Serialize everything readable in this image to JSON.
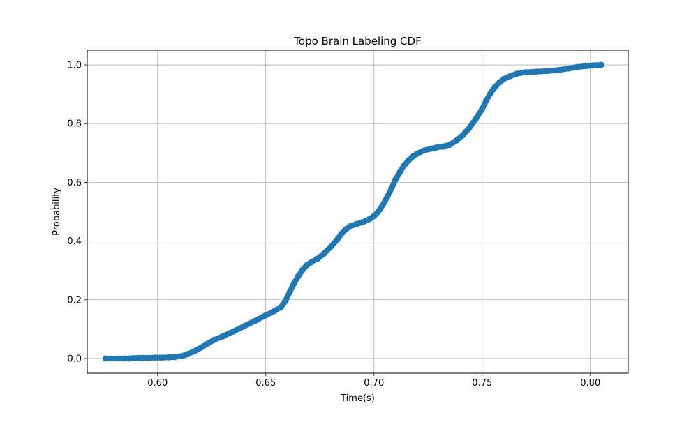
{
  "chart_data": {
    "type": "scatter",
    "title": "Topo Brain Labeling CDF",
    "xlabel": "Time(s)",
    "ylabel": "Probability",
    "xlim": [
      0.5675,
      0.8175
    ],
    "ylim": [
      -0.05,
      1.05
    ],
    "xticks": [
      "0.60",
      "0.65",
      "0.70",
      "0.75",
      "0.80"
    ],
    "yticks": [
      "0.0",
      "0.2",
      "0.4",
      "0.6",
      "0.8",
      "1.0"
    ],
    "grid": true,
    "marker_color": "#1f77b4",
    "series": [
      {
        "x": [
          0.576,
          0.582,
          0.585,
          0.587,
          0.589,
          0.591,
          0.593,
          0.596,
          0.599,
          0.602,
          0.605,
          0.608,
          0.611,
          0.614,
          0.617,
          0.62,
          0.623,
          0.626,
          0.63,
          0.635,
          0.64,
          0.645,
          0.65,
          0.654,
          0.657,
          0.659,
          0.661,
          0.663,
          0.665,
          0.667,
          0.669,
          0.671,
          0.674,
          0.677,
          0.68,
          0.683,
          0.685,
          0.687,
          0.689,
          0.692,
          0.695,
          0.698,
          0.7,
          0.702,
          0.704,
          0.706,
          0.708,
          0.71,
          0.712,
          0.714,
          0.716,
          0.718,
          0.72,
          0.723,
          0.726,
          0.729,
          0.732,
          0.735,
          0.738,
          0.741,
          0.744,
          0.747,
          0.75,
          0.752,
          0.754,
          0.756,
          0.758,
          0.76,
          0.763,
          0.766,
          0.77,
          0.775,
          0.78,
          0.785,
          0.79,
          0.794,
          0.798,
          0.801,
          0.803,
          0.805
        ],
        "y": [
          0.0,
          0.0,
          0.0,
          0.0,
          0.001,
          0.002,
          0.002,
          0.002,
          0.003,
          0.003,
          0.004,
          0.005,
          0.008,
          0.015,
          0.025,
          0.037,
          0.05,
          0.063,
          0.075,
          0.092,
          0.11,
          0.128,
          0.147,
          0.162,
          0.175,
          0.195,
          0.225,
          0.255,
          0.28,
          0.302,
          0.318,
          0.328,
          0.34,
          0.358,
          0.38,
          0.405,
          0.425,
          0.44,
          0.45,
          0.458,
          0.465,
          0.475,
          0.485,
          0.5,
          0.522,
          0.548,
          0.578,
          0.61,
          0.635,
          0.658,
          0.675,
          0.688,
          0.698,
          0.708,
          0.714,
          0.719,
          0.722,
          0.728,
          0.742,
          0.76,
          0.785,
          0.815,
          0.85,
          0.88,
          0.905,
          0.925,
          0.94,
          0.952,
          0.962,
          0.97,
          0.975,
          0.977,
          0.979,
          0.982,
          0.988,
          0.993,
          0.996,
          0.998,
          0.999,
          1.0
        ]
      }
    ]
  }
}
